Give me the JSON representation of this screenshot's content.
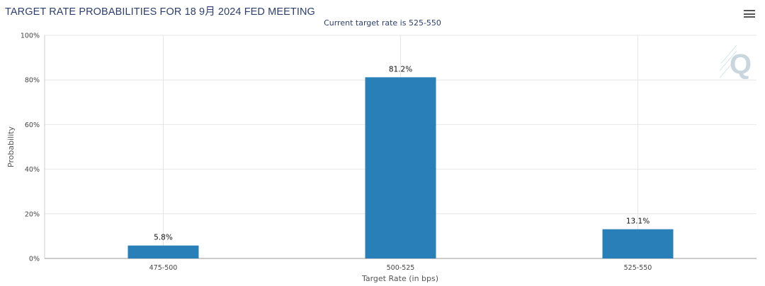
{
  "chart_data": {
    "type": "bar",
    "title": "TARGET RATE PROBABILITIES FOR 18 9月 2024 FED MEETING",
    "subtitle": "Current target rate is 525-550",
    "categories": [
      "475-500",
      "500-525",
      "525-550"
    ],
    "series": [
      {
        "values": [
          5.8,
          81.2,
          13.1
        ],
        "data_labels": [
          "5.8%",
          "81.2%",
          "13.1%"
        ]
      }
    ],
    "xlabel": "Target Rate (in bps)",
    "ylabel": "Probability",
    "ylim": [
      0,
      100
    ],
    "yticks": [
      0,
      20,
      40,
      60,
      80,
      100
    ],
    "ytick_labels": [
      "0%",
      "20%",
      "40%",
      "60%",
      "80%",
      "100%"
    ],
    "grid": true,
    "legend": "none",
    "bar_color": "#2980b9"
  },
  "toolbar": {
    "menu_icon": "hamburger-menu-icon"
  },
  "watermark": {
    "icon": "quikstrike-q-logo-icon"
  }
}
